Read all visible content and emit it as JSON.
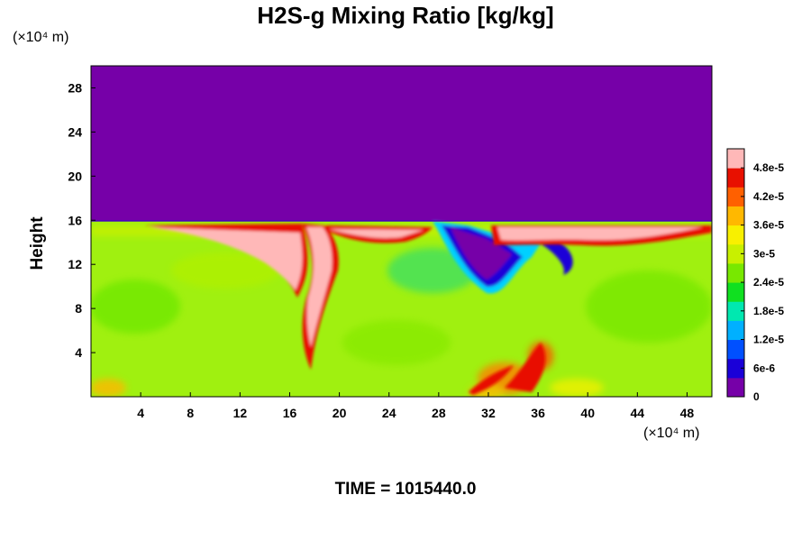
{
  "chart_data": {
    "type": "heatmap",
    "title": "H2S-g Mixing Ratio [kg/kg]",
    "ylabel": "Height",
    "y_unit": "(×10⁴ m)",
    "x_unit": "(×10⁴ m)",
    "x_ticks": [
      4,
      8,
      12,
      16,
      20,
      24,
      28,
      32,
      36,
      40,
      44,
      48
    ],
    "y_ticks": [
      4,
      8,
      12,
      16,
      20,
      24,
      28
    ],
    "xlim": [
      0,
      50
    ],
    "ylim": [
      0,
      30
    ],
    "colorbar": {
      "ticks": [
        "0",
        "6e-6",
        "1.2e-5",
        "1.8e-5",
        "2.4e-5",
        "3e-5",
        "3.6e-5",
        "4.2e-5",
        "4.8e-5"
      ],
      "values": [
        0,
        6e-06,
        1.2e-05,
        1.8e-05,
        2.4e-05,
        3e-05,
        3.6e-05,
        4.2e-05,
        4.8e-05
      ],
      "range": [
        0,
        5.2e-05
      ],
      "colors": [
        "#7600a8",
        "#1a00d8",
        "#0050ff",
        "#00b0ff",
        "#00e8b0",
        "#10e020",
        "#78e800",
        "#c8f000",
        "#f8f000",
        "#ffb800",
        "#ff6000",
        "#e81000",
        "#ffb8b8"
      ]
    },
    "fields": {
      "background_top": "#7600a8",
      "background_bottom": "#a0f010",
      "tropopause_height": 15.5
    }
  },
  "footer": {
    "time_text": "TIME = 1015440.0"
  }
}
